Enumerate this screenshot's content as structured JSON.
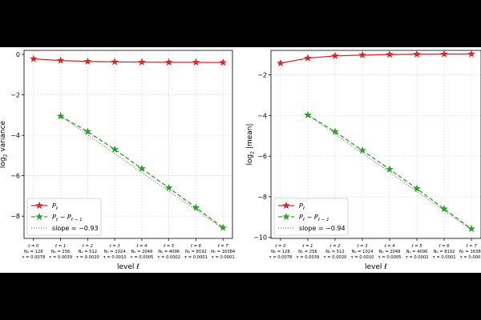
{
  "chart_data": [
    {
      "type": "line",
      "ylabel": "log$_2$ variance",
      "ylabel_parts": {
        "pre": "log",
        "sub": "2",
        "post": " variance"
      },
      "xlabel": "level ℓ",
      "ylim": [
        -9.1,
        0.2
      ],
      "yticks": [
        0,
        -2,
        -4,
        -6,
        -8
      ],
      "xlim": [
        -0.35,
        7.35
      ],
      "grid": true,
      "legend_position": "lower-left",
      "x": [
        0,
        1,
        2,
        3,
        4,
        5,
        6,
        7
      ],
      "series": [
        {
          "name": "P_ℓ",
          "label_main": "P",
          "label_sub": "ℓ",
          "color": "#d62728",
          "marker": "star",
          "style": "solid",
          "x": [
            0,
            1,
            2,
            3,
            4,
            5,
            6,
            7
          ],
          "values": [
            -0.22,
            -0.3,
            -0.35,
            -0.37,
            -0.38,
            -0.39,
            -0.39,
            -0.4
          ]
        },
        {
          "name": "P_ℓ − P_ℓ−1",
          "label_main": "P",
          "label_sub": "ℓ",
          "label_mid": " − P",
          "label_sub2": "ℓ − 1",
          "color": "#2ca02c",
          "marker": "star",
          "style": "dashed",
          "x": [
            1,
            2,
            3,
            4,
            5,
            6,
            7
          ],
          "values": [
            -3.05,
            -3.82,
            -4.7,
            -5.65,
            -6.6,
            -7.58,
            -8.57
          ]
        },
        {
          "name": "slope = −0.93",
          "color": "#606060",
          "marker": "none",
          "style": "dotted",
          "x": [
            1,
            7
          ],
          "values": [
            -3.05,
            -8.62
          ]
        }
      ]
    },
    {
      "type": "line",
      "ylabel": "log$_2$ |mean|",
      "ylabel_parts": {
        "pre": "log",
        "sub": "2",
        "post": " |mean|"
      },
      "xlabel": "level ℓ",
      "ylim": [
        -10.05,
        -0.8
      ],
      "yticks": [
        -2,
        -4,
        -6,
        -8,
        -10
      ],
      "xlim": [
        -0.35,
        7.35
      ],
      "grid": true,
      "legend_position": "lower-left",
      "x": [
        0,
        1,
        2,
        3,
        4,
        5,
        6,
        7
      ],
      "series": [
        {
          "name": "P_ℓ",
          "label_main": "P",
          "label_sub": "ℓ",
          "color": "#d62728",
          "marker": "star",
          "style": "solid",
          "x": [
            0,
            1,
            2,
            3,
            4,
            5,
            6,
            7
          ],
          "values": [
            -1.43,
            -1.18,
            -1.07,
            -1.03,
            -1.0,
            -0.99,
            -0.98,
            -0.98
          ]
        },
        {
          "name": "P_ℓ − P_ℓ−1",
          "label_main": "P",
          "label_sub": "ℓ",
          "label_mid": " − P",
          "label_sub2": "ℓ − 1",
          "color": "#2ca02c",
          "marker": "star",
          "style": "dashed",
          "x": [
            1,
            2,
            3,
            4,
            5,
            6,
            7
          ],
          "values": [
            -3.98,
            -4.8,
            -5.72,
            -6.65,
            -7.6,
            -8.6,
            -9.58
          ]
        },
        {
          "name": "slope = −0.94",
          "color": "#606060",
          "marker": "none",
          "style": "dotted",
          "x": [
            1,
            7
          ],
          "values": [
            -3.98,
            -9.62
          ]
        }
      ]
    }
  ],
  "level_labels": [
    {
      "ell": "ℓ = 0",
      "n": "N₀ = 128",
      "tau": "τ = 0.0078"
    },
    {
      "ell": "ℓ = 1",
      "n": "N₁ = 256",
      "tau": "τ = 0.0039"
    },
    {
      "ell": "ℓ = 2",
      "n": "N₂ = 512",
      "tau": "τ = 0.0020"
    },
    {
      "ell": "ℓ = 3",
      "n": "N₃ = 1024",
      "tau": "τ = 0.0010"
    },
    {
      "ell": "ℓ = 4",
      "n": "N₄ = 2048",
      "tau": "τ = 0.0005"
    },
    {
      "ell": "ℓ = 5",
      "n": "N₅ = 4096",
      "tau": "τ = 0.0002"
    },
    {
      "ell": "ℓ = 6",
      "n": "N₆ = 8192",
      "tau": "τ = 0.0001"
    },
    {
      "ell": "ℓ = 7",
      "n": "N₇ = 16384",
      "tau": "τ = 0.0001"
    }
  ]
}
